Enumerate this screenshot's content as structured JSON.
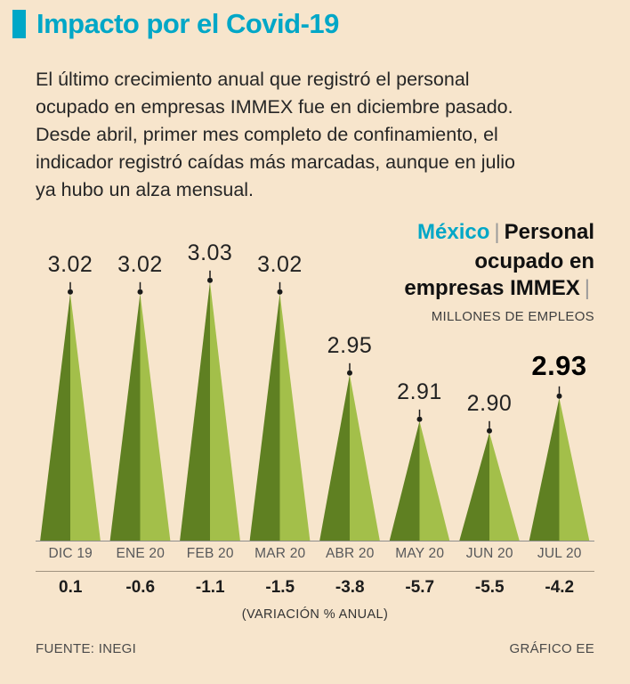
{
  "header": {
    "title": "Impacto por el Covid-19"
  },
  "intro_lines": [
    "El último crecimiento anual que registró el personal",
    "ocupado en empresas IMMEX fue en diciembre pasado.",
    "Desde abril, primer mes completo de confinamiento, el",
    "indicador registró caídas más marcadas, aunque en julio",
    "ya hubo un alza mensual."
  ],
  "chart_title": {
    "region": "México",
    "separator": "|",
    "line1": "Personal",
    "line2": "ocupado en",
    "line3": "empresas IMMEX",
    "unit": "MILLONES DE EMPLEOS"
  },
  "chart_data": {
    "type": "area",
    "title": "México | Personal ocupado en empresas IMMEX",
    "ylabel": "MILLONES DE EMPLEOS",
    "categories": [
      "DIC 19",
      "ENE 20",
      "FEB 20",
      "MAR 20",
      "ABR 20",
      "MAY 20",
      "JUN 20",
      "JUL 20"
    ],
    "values": [
      3.02,
      3.02,
      3.03,
      3.02,
      2.95,
      2.91,
      2.9,
      2.93
    ],
    "value_labels": [
      "3.02",
      "3.02",
      "3.03",
      "3.02",
      "2.95",
      "2.91",
      "2.90",
      "2.93"
    ],
    "highlight_index": 7,
    "variation_pct_annual": [
      0.1,
      -0.6,
      -1.1,
      -1.5,
      -3.8,
      -5.7,
      -5.5,
      -4.2
    ],
    "variation_labels": [
      "0.1",
      "-0.6",
      "-1.1",
      "-1.5",
      "-3.8",
      "-5.7",
      "-5.5",
      "-4.2"
    ],
    "variation_caption": "(VARIACIÓN % ANUAL)",
    "ylim": [
      2.8,
      3.05
    ],
    "colors": {
      "dark_green": "#5f8022",
      "light_green": "#a3bf4a",
      "accent_cyan": "#00a7c7",
      "background": "#f7e5cc",
      "marker": "#1a1a1a"
    }
  },
  "footer": {
    "source": "FUENTE: INEGI",
    "credit": "GRÁFICO EE"
  }
}
